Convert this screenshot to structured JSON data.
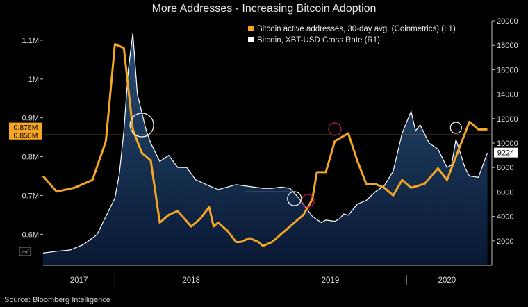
{
  "title": "More Addresses - Increasing Bitcoin Adoption",
  "source": "Source: Bloomberg Intelligence",
  "chart_data": {
    "type": "line",
    "title": "More Addresses - Increasing Bitcoin Adoption",
    "x_tick_labels": [
      "2017",
      "2018",
      "2019",
      "2020"
    ],
    "left_axis": {
      "ticks": [
        "0.6M",
        "0.7M",
        "0.8M",
        "0.9M",
        "1M",
        "1.1M"
      ],
      "tick_values": [
        0.6,
        0.7,
        0.8,
        0.9,
        1.0,
        1.1
      ],
      "range": [
        0.52,
        1.15
      ],
      "unit": "M"
    },
    "right_axis": {
      "ticks": [
        "2000",
        "4000",
        "6000",
        "8000",
        "10000",
        "12000",
        "14000",
        "16000",
        "18000",
        "20000"
      ],
      "tick_values": [
        2000,
        4000,
        6000,
        8000,
        10000,
        12000,
        14000,
        16000,
        18000,
        20000
      ],
      "range": [
        0,
        20000
      ]
    },
    "series": [
      {
        "name": "Bitcoin active addresses, 30-day avg. (Coinmetrics) (L1)",
        "axis": "left",
        "color": "#f5a623",
        "last_value_labels": [
          "0.876M",
          "0.856M"
        ],
        "x": [
          0.0,
          0.03,
          0.07,
          0.11,
          0.14,
          0.16,
          0.18,
          0.2,
          0.22,
          0.24,
          0.26,
          0.28,
          0.3,
          0.33,
          0.35,
          0.37,
          0.38,
          0.39,
          0.41,
          0.43,
          0.44,
          0.46,
          0.48,
          0.49,
          0.51,
          0.53,
          0.54,
          0.56,
          0.58,
          0.6,
          0.61,
          0.63,
          0.65,
          0.68,
          0.7,
          0.72,
          0.74,
          0.76,
          0.78,
          0.8,
          0.82,
          0.85,
          0.88,
          0.9,
          0.93,
          0.95,
          0.97,
          0.99
        ],
        "y": [
          0.75,
          0.71,
          0.72,
          0.74,
          0.84,
          1.09,
          1.08,
          0.87,
          0.81,
          0.79,
          0.63,
          0.65,
          0.66,
          0.62,
          0.64,
          0.67,
          0.62,
          0.63,
          0.61,
          0.58,
          0.58,
          0.59,
          0.58,
          0.57,
          0.58,
          0.6,
          0.61,
          0.63,
          0.65,
          0.69,
          0.76,
          0.76,
          0.84,
          0.86,
          0.79,
          0.73,
          0.73,
          0.72,
          0.7,
          0.74,
          0.72,
          0.73,
          0.77,
          0.74,
          0.83,
          0.89,
          0.87,
          0.87
        ]
      },
      {
        "name": "Bitcoin, XBT-USD Cross Rate (R1)",
        "axis": "right",
        "color": "#ffffff",
        "last_value_label": "9224",
        "x": [
          0.0,
          0.03,
          0.06,
          0.09,
          0.12,
          0.14,
          0.16,
          0.17,
          0.18,
          0.19,
          0.2,
          0.21,
          0.23,
          0.24,
          0.26,
          0.28,
          0.3,
          0.32,
          0.34,
          0.37,
          0.39,
          0.41,
          0.43,
          0.45,
          0.47,
          0.49,
          0.51,
          0.53,
          0.55,
          0.57,
          0.6,
          0.62,
          0.63,
          0.65,
          0.66,
          0.67,
          0.68,
          0.7,
          0.72,
          0.74,
          0.76,
          0.78,
          0.8,
          0.82,
          0.83,
          0.84,
          0.86,
          0.88,
          0.9,
          0.91,
          0.92,
          0.94,
          0.95,
          0.97,
          0.99
        ],
        "y": [
          1000,
          1150,
          1250,
          1700,
          2500,
          4000,
          5500,
          7500,
          11000,
          16000,
          19000,
          14000,
          11000,
          10000,
          8500,
          9000,
          8000,
          8000,
          7000,
          6500,
          6200,
          6400,
          6600,
          6500,
          6400,
          6300,
          6300,
          6400,
          6300,
          5500,
          4000,
          3500,
          3700,
          3600,
          3800,
          4200,
          4100,
          5000,
          5300,
          6000,
          6500,
          7700,
          10800,
          12600,
          11000,
          11500,
          10000,
          9500,
          8000,
          8200,
          10300,
          8000,
          7300,
          7200,
          9200
        ]
      }
    ],
    "reference_lines": [
      {
        "axis": "left",
        "value": 0.856,
        "color": "#f5a623"
      },
      {
        "axis": "right",
        "value": 6000,
        "color": "#ffffff"
      }
    ],
    "grid": false,
    "legend_position": "top-right"
  }
}
